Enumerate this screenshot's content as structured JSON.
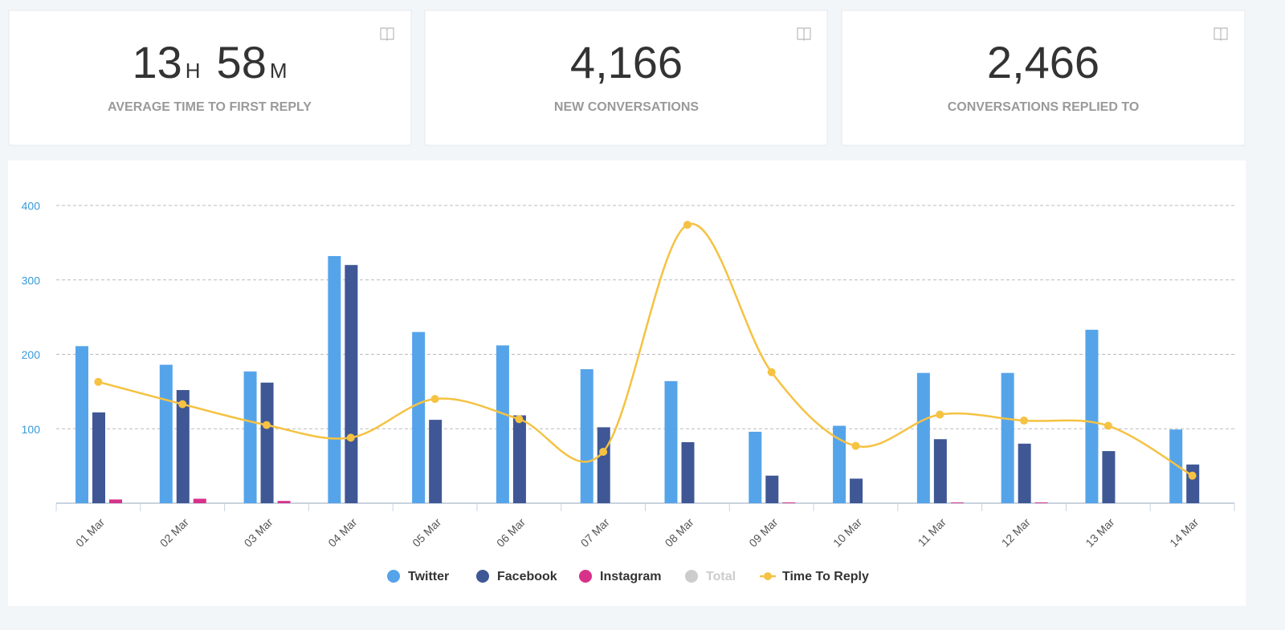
{
  "cards": [
    {
      "hours": "13",
      "hours_unit": "H",
      "minutes": "58",
      "minutes_unit": "M",
      "label": "AVERAGE TIME TO FIRST REPLY"
    },
    {
      "value": "4,166",
      "label": "NEW CONVERSATIONS"
    },
    {
      "value": "2,466",
      "label": "CONVERSATIONS REPLIED TO"
    }
  ],
  "chart_data": {
    "type": "bar",
    "categories": [
      "01 Mar",
      "02 Mar",
      "03 Mar",
      "04 Mar",
      "05 Mar",
      "06 Mar",
      "07 Mar",
      "08 Mar",
      "09 Mar",
      "10 Mar",
      "11 Mar",
      "12 Mar",
      "13 Mar",
      "14 Mar"
    ],
    "series": [
      {
        "name": "Twitter",
        "color": "#55a4ea",
        "values": [
          211,
          186,
          177,
          332,
          230,
          212,
          180,
          164,
          96,
          104,
          175,
          175,
          233,
          99
        ]
      },
      {
        "name": "Facebook",
        "color": "#3f5795",
        "values": [
          122,
          152,
          162,
          320,
          112,
          118,
          102,
          82,
          37,
          33,
          86,
          80,
          70,
          52
        ]
      },
      {
        "name": "Instagram",
        "color": "#d8318a",
        "values": [
          5,
          6,
          3,
          0,
          0,
          0,
          0,
          0,
          1,
          0,
          1,
          1,
          0,
          0
        ]
      },
      {
        "name": "Total",
        "color": "#cccccc",
        "visible": false,
        "values": [
          null,
          null,
          null,
          null,
          null,
          null,
          null,
          null,
          null,
          null,
          null,
          null,
          null,
          null
        ]
      },
      {
        "name": "Time To Reply",
        "color": "#f5c242",
        "type": "line",
        "values": [
          163,
          133,
          105,
          88,
          140,
          113,
          69,
          374,
          176,
          77,
          119,
          111,
          104,
          37
        ]
      }
    ],
    "ylim": [
      0,
      400
    ],
    "yticks": [
      100,
      200,
      300,
      400
    ],
    "grid": true,
    "legend": "bottom"
  }
}
